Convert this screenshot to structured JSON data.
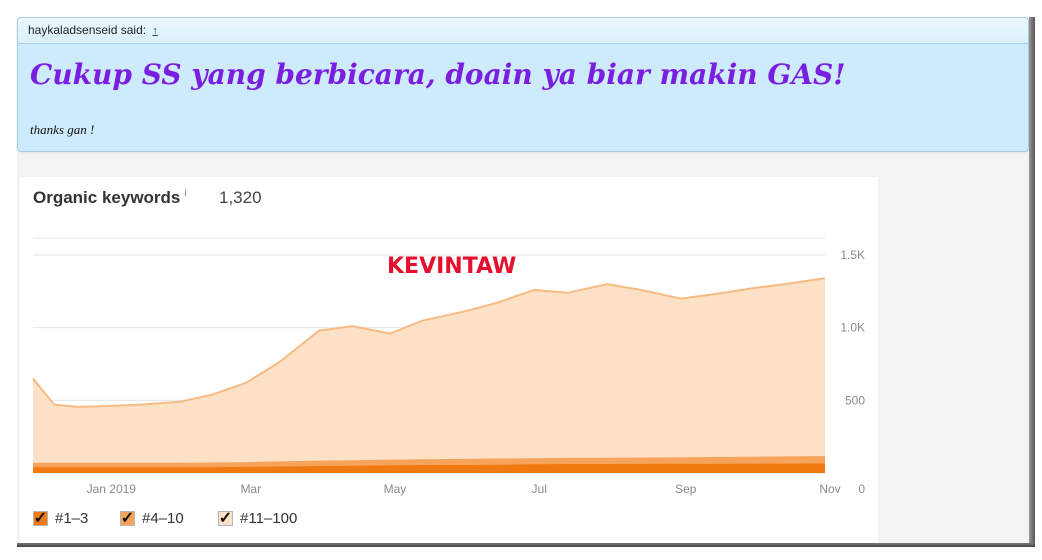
{
  "quote": {
    "author_line": "haykaladsenseid said:",
    "arrow": "↑",
    "title": "Cukup SS yang berbicara, doain ya biar makin GAS!",
    "subtitle": "thanks gan !"
  },
  "card": {
    "title": "Organic keywords",
    "info": "i",
    "value": "1,320",
    "watermark": "KEVINTAW"
  },
  "colors": {
    "pos_1_3": "#f07a10",
    "pos_4_10": "#f6a45c",
    "pos_11_100": "#fde1c6",
    "line_11_100": "#f6bb82"
  },
  "chart_data": {
    "type": "area",
    "x": [
      "2018-12-01",
      "2018-12-10",
      "2018-12-20",
      "2019-01-01",
      "2019-01-15",
      "2019-02-01",
      "2019-02-15",
      "2019-03-01",
      "2019-03-15",
      "2019-04-01",
      "2019-04-15",
      "2019-05-01",
      "2019-05-15",
      "2019-06-01",
      "2019-06-15",
      "2019-07-01",
      "2019-07-15",
      "2019-08-01",
      "2019-08-15",
      "2019-09-01",
      "2019-09-15",
      "2019-10-01",
      "2019-10-15",
      "2019-11-01"
    ],
    "x_ticks": [
      "Jan 2019",
      "Mar",
      "May",
      "Jul",
      "Sep",
      "Nov"
    ],
    "y_ticks": [
      "0",
      "500",
      "1.0K",
      "1.5K"
    ],
    "ylim": [
      0,
      1500
    ],
    "series": [
      {
        "name": "#1–3",
        "checked": true,
        "values": [
          40,
          40,
          40,
          40,
          40,
          40,
          40,
          42,
          45,
          48,
          50,
          52,
          55,
          55,
          57,
          60,
          62,
          62,
          63,
          63,
          64,
          65,
          65,
          66
        ]
      },
      {
        "name": "#4–10",
        "checked": true,
        "values": [
          70,
          70,
          70,
          70,
          70,
          70,
          72,
          75,
          80,
          85,
          88,
          92,
          95,
          97,
          100,
          102,
          104,
          105,
          106,
          108,
          110,
          112,
          114,
          116
        ]
      },
      {
        "name": "#11–100",
        "checked": true,
        "values": [
          650,
          470,
          455,
          460,
          470,
          490,
          540,
          620,
          760,
          980,
          1010,
          960,
          1050,
          1110,
          1170,
          1260,
          1240,
          1300,
          1260,
          1200,
          1230,
          1270,
          1300,
          1340
        ]
      }
    ],
    "legend_position": "bottom-left",
    "grid": true
  }
}
